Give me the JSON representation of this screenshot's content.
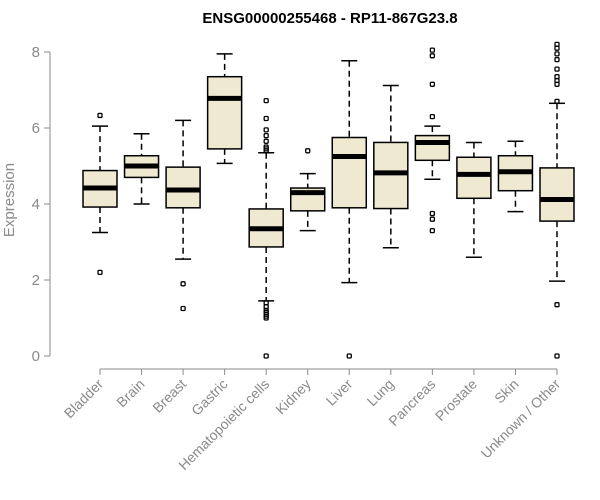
{
  "colors": {
    "box_fill": "#efe9d2",
    "axis": "#8a8a8a",
    "text": "#8a8a8a",
    "stroke": "#000000"
  },
  "chart_data": {
    "type": "boxplot",
    "title": "ENSG00000255468 - RP11-867G23.8",
    "xlabel": "",
    "ylabel": "Expression",
    "ylim": [
      0,
      8
    ],
    "yticks": [
      0,
      2,
      4,
      6,
      8
    ],
    "categories": [
      "Bladder",
      "Brain",
      "Breast",
      "Gastric",
      "Hematopoietic cells",
      "Kidney",
      "Liver",
      "Lung",
      "Pancreas",
      "Prostate",
      "Skin",
      "Unknown / Other"
    ],
    "boxes": [
      {
        "category": "Bladder",
        "whisker_low": 3.25,
        "q1": 3.92,
        "median": 4.42,
        "q3": 4.88,
        "whisker_high": 6.05,
        "outliers": [
          2.2,
          6.33
        ]
      },
      {
        "category": "Brain",
        "whisker_low": 4.0,
        "q1": 4.7,
        "median": 5.0,
        "q3": 5.27,
        "whisker_high": 5.85,
        "outliers": []
      },
      {
        "category": "Breast",
        "whisker_low": 2.55,
        "q1": 3.9,
        "median": 4.37,
        "q3": 4.97,
        "whisker_high": 6.2,
        "outliers": [
          1.9,
          1.25
        ]
      },
      {
        "category": "Gastric",
        "whisker_low": 5.07,
        "q1": 5.45,
        "median": 6.78,
        "q3": 7.35,
        "whisker_high": 7.95,
        "outliers": []
      },
      {
        "category": "Hematopoietic cells",
        "whisker_low": 1.45,
        "q1": 2.87,
        "median": 3.35,
        "q3": 3.87,
        "whisker_high": 5.35,
        "outliers": [
          6.72,
          6.25,
          5.95,
          5.8,
          5.65,
          5.5,
          5.45,
          5.4,
          1.4,
          1.3,
          1.2,
          1.15,
          1.1,
          1.05,
          1.0,
          0.0
        ]
      },
      {
        "category": "Kidney",
        "whisker_low": 3.3,
        "q1": 3.82,
        "median": 4.3,
        "q3": 4.42,
        "whisker_high": 4.8,
        "outliers": [
          5.4
        ]
      },
      {
        "category": "Liver",
        "whisker_low": 1.93,
        "q1": 3.9,
        "median": 5.25,
        "q3": 5.75,
        "whisker_high": 7.77,
        "outliers": [
          0.0
        ]
      },
      {
        "category": "Lung",
        "whisker_low": 2.85,
        "q1": 3.88,
        "median": 4.82,
        "q3": 5.62,
        "whisker_high": 7.12,
        "outliers": []
      },
      {
        "category": "Pancreas",
        "whisker_low": 4.65,
        "q1": 5.15,
        "median": 5.62,
        "q3": 5.8,
        "whisker_high": 6.05,
        "outliers": [
          8.05,
          7.9,
          7.15,
          6.3,
          3.75,
          3.6,
          3.3
        ]
      },
      {
        "category": "Prostate",
        "whisker_low": 2.6,
        "q1": 4.15,
        "median": 4.78,
        "q3": 5.23,
        "whisker_high": 5.62,
        "outliers": []
      },
      {
        "category": "Skin",
        "whisker_low": 3.8,
        "q1": 4.35,
        "median": 4.85,
        "q3": 5.27,
        "whisker_high": 5.65,
        "outliers": []
      },
      {
        "category": "Unknown / Other",
        "whisker_low": 1.97,
        "q1": 3.55,
        "median": 4.12,
        "q3": 4.95,
        "whisker_high": 6.65,
        "outliers": [
          8.2,
          8.1,
          7.95,
          7.8,
          7.55,
          7.35,
          7.25,
          7.15,
          6.7,
          1.35,
          0.0
        ]
      }
    ]
  }
}
